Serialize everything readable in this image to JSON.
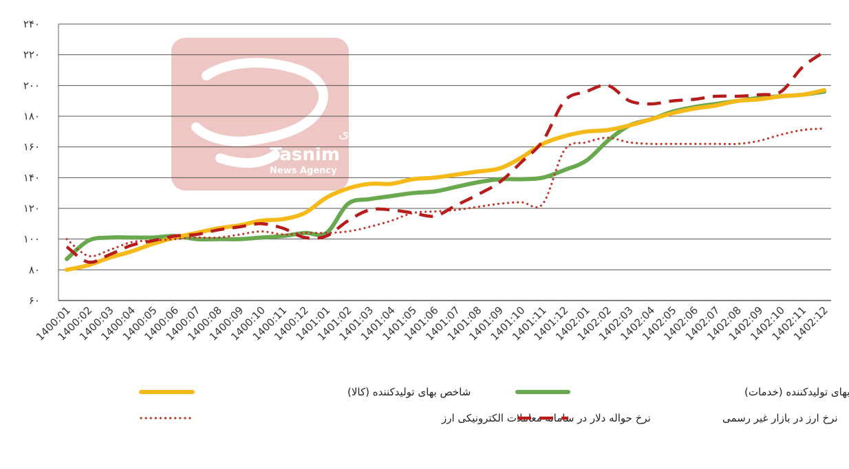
{
  "watermark": {
    "text_fa": "خبرگزاری",
    "text_en": "Tasnim",
    "text_sub": "News Agency",
    "color": "#e8b4b0"
  },
  "chart_data": {
    "type": "line",
    "ylim": [
      60,
      240
    ],
    "yticks": [
      "۶۰",
      "۸۰",
      "۱۰۰",
      "۱۲۰",
      "۱۴۰",
      "۱۶۰",
      "۱۸۰",
      "۲۰۰",
      "۲۲۰",
      "۲۴۰"
    ],
    "ytick_values": [
      60,
      80,
      100,
      120,
      140,
      160,
      180,
      200,
      220,
      240
    ],
    "grid": true,
    "legend_position": "bottom",
    "categories": [
      "1400:01",
      "1400:02",
      "1400:03",
      "1400:04",
      "1400:05",
      "1400:06",
      "1400:07",
      "1400:08",
      "1400:09",
      "1400:10",
      "1400:11",
      "1400:12",
      "1401:01",
      "1401:02",
      "1401:03",
      "1401:04",
      "1401:05",
      "1401:06",
      "1401:07",
      "1401:08",
      "1401:09",
      "1401:10",
      "1401:11",
      "1401:12",
      "1402:01",
      "1402:02",
      "1402:03",
      "1402:04",
      "1402:05",
      "1402:06",
      "1402:07",
      "1402:08",
      "1402:09",
      "1402:10",
      "1402:11",
      "1402:12"
    ],
    "series": [
      {
        "name": "شاخص بهای تولیدکننده (کالا)",
        "color": "#f5b919",
        "style": "solid",
        "values": [
          80,
          83,
          88,
          92,
          97,
          101,
          104,
          107,
          109,
          112,
          113,
          117,
          127,
          133,
          136,
          136,
          139,
          140,
          142,
          144,
          146,
          153,
          162,
          167,
          170,
          171,
          174,
          178,
          182,
          185,
          187,
          190,
          191,
          193,
          194,
          197
        ]
      },
      {
        "name": "شاخص بهای تولیدکننده (خدمات)",
        "color": "#6aa84f",
        "style": "solid",
        "values": [
          87,
          99,
          101,
          101,
          101,
          102,
          100,
          100,
          100,
          101,
          102,
          104,
          104,
          123,
          126,
          128,
          130,
          131,
          134,
          137,
          139,
          139,
          140,
          145,
          151,
          164,
          174,
          178,
          183,
          186,
          188,
          190,
          192,
          193,
          194,
          196
        ]
      },
      {
        "name": "نرخ حواله دلار در سامانه معاملات الکترونیکی ارز",
        "color": "#c0392b",
        "style": "dotted",
        "values": [
          100,
          89,
          93,
          98,
          99,
          100,
          101,
          101,
          103,
          105,
          103,
          104,
          104,
          105,
          108,
          112,
          117,
          118,
          119,
          121,
          123,
          124,
          123,
          158,
          163,
          166,
          163,
          162,
          162,
          162,
          162,
          162,
          164,
          168,
          171,
          172
        ]
      },
      {
        "name": "نرخ ارز در بازار غیر رسمی",
        "color": "#b71c1c",
        "style": "dashed",
        "values": [
          95,
          85,
          90,
          96,
          99,
          102,
          103,
          106,
          108,
          110,
          107,
          101,
          102,
          112,
          119,
          119,
          117,
          115,
          122,
          129,
          137,
          150,
          164,
          190,
          196,
          200,
          190,
          188,
          190,
          191,
          193,
          193,
          194,
          196,
          212,
          222
        ]
      }
    ]
  }
}
